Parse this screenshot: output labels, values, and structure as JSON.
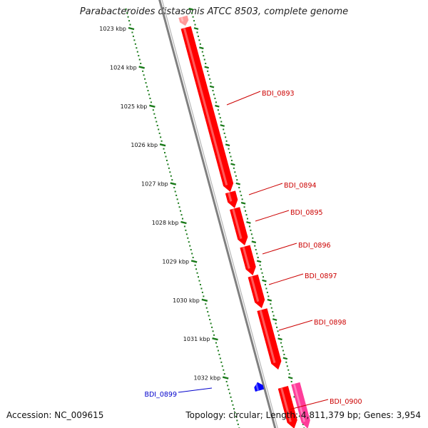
{
  "title": "Parabacteroides distasonis ATCC 8503, complete genome",
  "accession": "Accession: NC_009615",
  "summary": "Topology: circular; Length: 4,811,379 bp; Genes: 3,954",
  "colors": {
    "backbone": "#808080",
    "ticks": "#1a7a1a",
    "forward_gene": "#ff0000",
    "reverse_gene": "#0000ff",
    "pink_gene": "#ff3d9a",
    "forward_label": "#cc0000",
    "reverse_label": "#0000cc"
  },
  "ticks": [
    {
      "kbp": 1023,
      "label": "1023 kbp"
    },
    {
      "kbp": 1024,
      "label": "1024 kbp"
    },
    {
      "kbp": 1025,
      "label": "1025 kbp"
    },
    {
      "kbp": 1026,
      "label": "1026 kbp"
    },
    {
      "kbp": 1027,
      "label": "1027 kbp"
    },
    {
      "kbp": 1028,
      "label": "1028 kbp"
    },
    {
      "kbp": 1029,
      "label": "1029 kbp"
    },
    {
      "kbp": 1030,
      "label": "1030 kbp"
    },
    {
      "kbp": 1031,
      "label": "1031 kbp"
    },
    {
      "kbp": 1032,
      "label": "1032 kbp"
    }
  ],
  "genes": [
    {
      "id": "BDI_0893",
      "strand": "+",
      "start_kbp": 1022.98,
      "end_kbp": 1027.2,
      "labeled": true
    },
    {
      "id": "BDI_0894",
      "strand": "+",
      "start_kbp": 1027.22,
      "end_kbp": 1027.62,
      "labeled": true
    },
    {
      "id": "BDI_0895",
      "strand": "+",
      "start_kbp": 1027.64,
      "end_kbp": 1028.58,
      "labeled": true
    },
    {
      "id": "BDI_0896",
      "strand": "+",
      "start_kbp": 1028.62,
      "end_kbp": 1029.35,
      "labeled": true
    },
    {
      "id": "BDI_0897",
      "strand": "+",
      "start_kbp": 1029.38,
      "end_kbp": 1030.2,
      "labeled": true
    },
    {
      "id": "BDI_0898",
      "strand": "+",
      "start_kbp": 1030.25,
      "end_kbp": 1031.78,
      "labeled": true
    },
    {
      "id": "BDI_0899",
      "strand": "-",
      "start_kbp": 1032.12,
      "end_kbp": 1032.32,
      "labeled": true
    },
    {
      "id": "BDI_0900",
      "strand": "+",
      "start_kbp": 1032.25,
      "end_kbp": 1033.3,
      "labeled": true
    },
    {
      "id": "",
      "strand": "+",
      "kind": "pink",
      "start_kbp": 1032.15,
      "end_kbp": 1033.3,
      "labeled": false
    },
    {
      "id": "",
      "strand": "+",
      "kind": "pink",
      "start_kbp": 1022.7,
      "end_kbp": 1022.92,
      "labeled": false
    }
  ]
}
